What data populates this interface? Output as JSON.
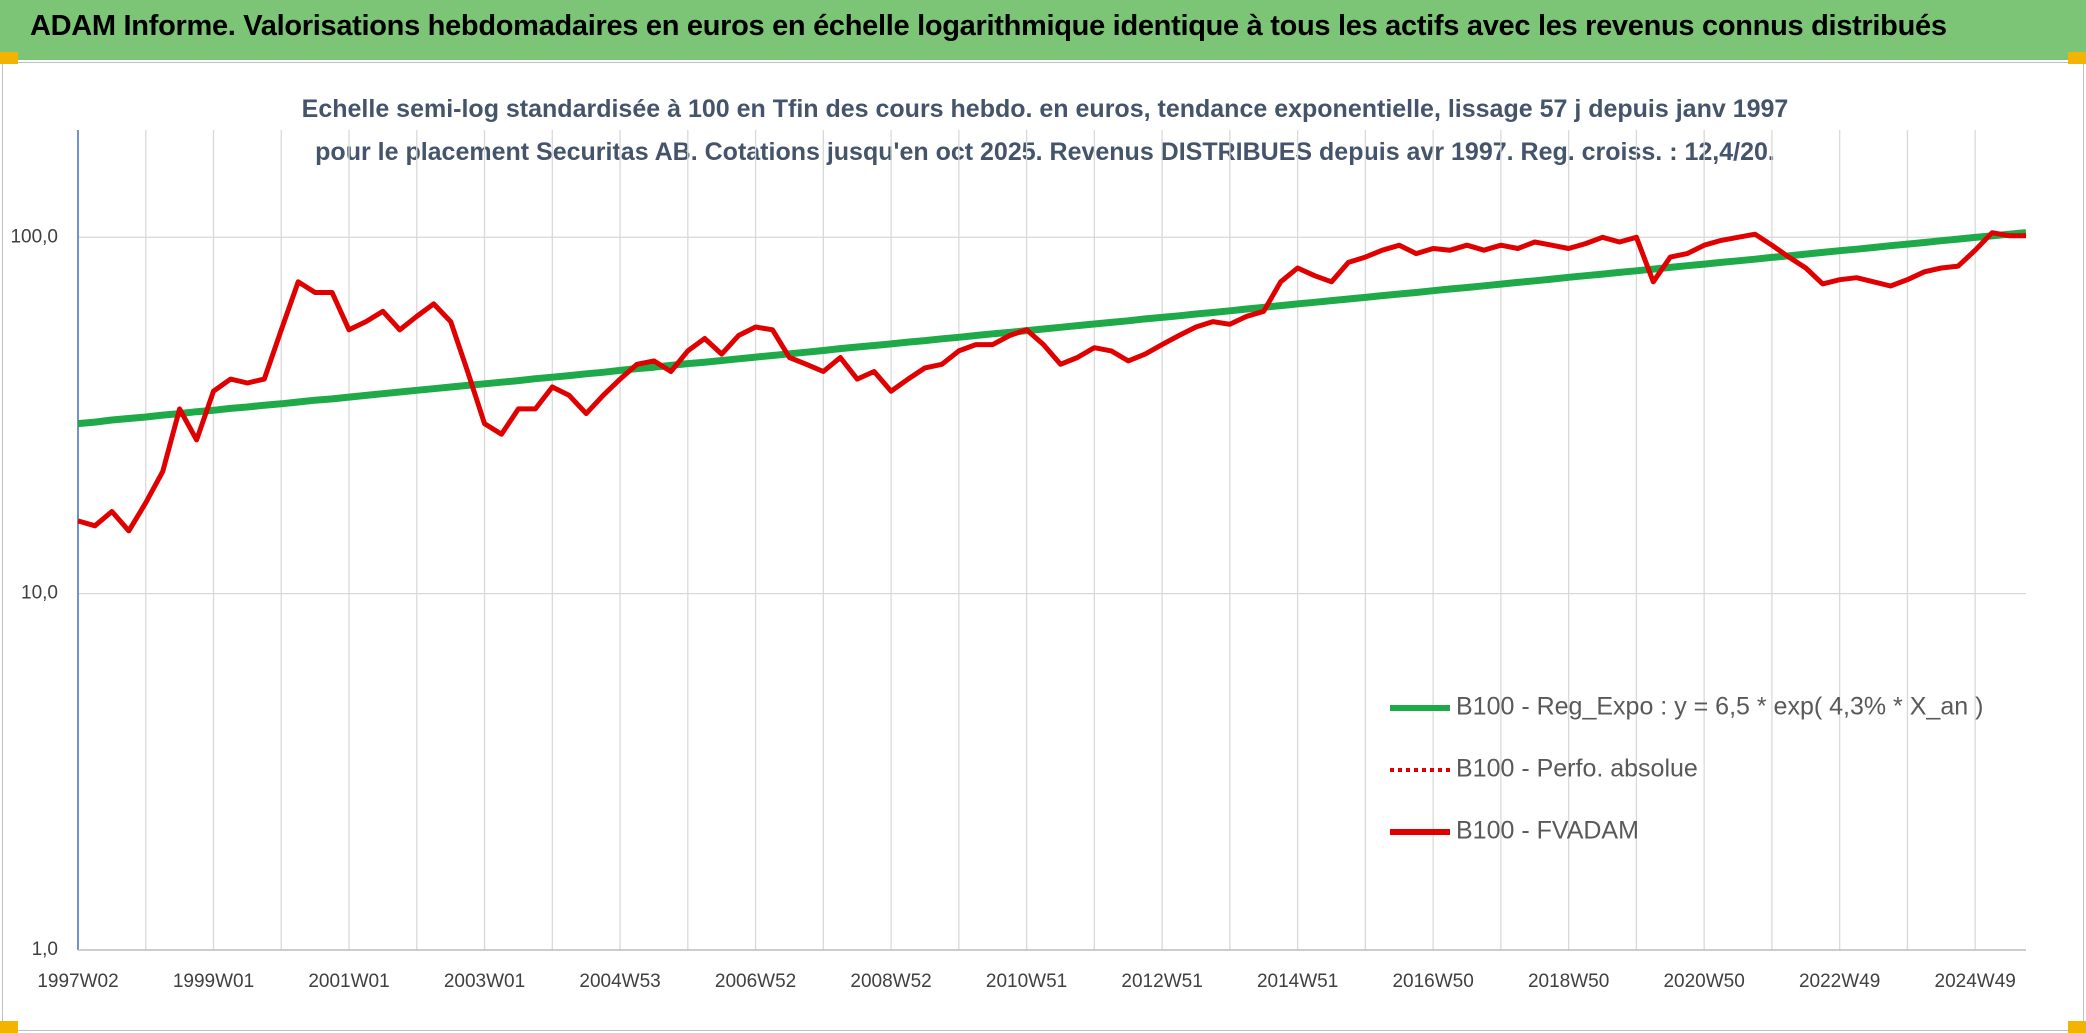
{
  "chart_data": {
    "type": "line",
    "title": "ADAM Informe. Valorisations hebdomadaires en euros en échelle logarithmique identique à tous les actifs avec les revenus connus distribués",
    "subtitle": "Echelle semi-log standardisée à 100 en Tfin des cours hebdo. en euros, tendance exponentielle, lissage 57 j depuis janv 1997 pour le placement Securitas AB. Cotations jusqu'en oct 2025. Revenus DISTRIBUES depuis avr 1997. Reg. croiss. : 12,4/20.",
    "categories": [
      "1997W02",
      null,
      null,
      null,
      null,
      null,
      null,
      null,
      "1999W01",
      null,
      null,
      null,
      null,
      null,
      null,
      null,
      "2001W01",
      null,
      null,
      null,
      null,
      null,
      null,
      null,
      "2003W01",
      null,
      null,
      null,
      null,
      null,
      null,
      null,
      "2004W53",
      null,
      null,
      null,
      null,
      null,
      null,
      null,
      "2006W52",
      null,
      null,
      null,
      null,
      null,
      null,
      null,
      "2008W52",
      null,
      null,
      null,
      null,
      null,
      null,
      null,
      "2010W51",
      null,
      null,
      null,
      null,
      null,
      null,
      null,
      "2012W51",
      null,
      null,
      null,
      null,
      null,
      null,
      null,
      "2014W51",
      null,
      null,
      null,
      null,
      null,
      null,
      null,
      "2016W50",
      null,
      null,
      null,
      null,
      null,
      null,
      null,
      "2018W50",
      null,
      null,
      null,
      null,
      null,
      null,
      null,
      "2020W50",
      null,
      null,
      null,
      null,
      null,
      null,
      null,
      "2022W49",
      null,
      null,
      null,
      null,
      null,
      null,
      null,
      "2024W49",
      null,
      null,
      null
    ],
    "series": [
      {
        "name": "B100 - Reg_Expo : y = 6,5 * exp( 4,3% *  X_an )",
        "color": "#1faa4a",
        "dash": false,
        "values": [
          30.0,
          30.3,
          30.7,
          31.0,
          31.3,
          31.7,
          32.0,
          32.4,
          32.7,
          33.1,
          33.4,
          33.8,
          34.1,
          34.5,
          34.9,
          35.2,
          35.6,
          36.0,
          36.4,
          36.8,
          37.2,
          37.6,
          38.0,
          38.4,
          38.8,
          39.2,
          39.6,
          40.1,
          40.5,
          40.9,
          41.4,
          41.8,
          42.3,
          42.8,
          43.2,
          43.7,
          44.2,
          44.6,
          45.1,
          45.6,
          46.1,
          46.6,
          47.1,
          47.6,
          48.1,
          48.7,
          49.2,
          49.7,
          50.2,
          50.8,
          51.3,
          51.9,
          52.4,
          53.0,
          53.6,
          54.1,
          54.7,
          55.3,
          55.9,
          56.5,
          57.1,
          57.7,
          58.3,
          59.0,
          59.6,
          60.2,
          60.9,
          61.5,
          62.2,
          62.9,
          63.6,
          64.3,
          65.0,
          65.7,
          66.4,
          67.1,
          67.8,
          68.6,
          69.3,
          70.0,
          70.8,
          71.6,
          72.3,
          73.1,
          73.9,
          74.7,
          75.5,
          76.3,
          77.2,
          78.0,
          78.8,
          79.7,
          80.5,
          81.4,
          82.3,
          83.2,
          84.1,
          85.0,
          85.9,
          86.8,
          87.8,
          88.7,
          89.7,
          90.7,
          91.7,
          92.6,
          93.6,
          94.7,
          95.7,
          96.7,
          97.8,
          98.8,
          99.9,
          100.9,
          102.0,
          103.1
        ]
      },
      {
        "name": "B100 - Perfo. absolue",
        "color": "#e00000",
        "dash": true,
        "values": [
          16,
          15.5,
          17,
          15,
          18,
          22,
          33,
          27,
          37,
          40,
          39,
          40,
          55,
          75,
          70,
          70,
          55,
          58,
          62,
          55,
          60,
          65,
          58,
          42,
          30,
          28,
          33,
          33,
          38,
          36,
          32,
          36,
          40,
          44,
          45,
          42,
          48,
          52,
          47,
          53,
          56,
          55,
          46,
          44,
          42,
          46,
          40,
          42,
          37,
          40,
          43,
          44,
          48,
          50,
          50,
          53,
          55,
          50,
          44,
          46,
          49,
          48,
          45,
          47,
          50,
          53,
          56,
          58,
          57,
          60,
          62,
          75,
          82,
          78,
          75,
          85,
          88,
          92,
          95,
          90,
          93,
          92,
          95,
          92,
          95,
          93,
          97,
          95,
          93,
          96,
          100,
          97,
          100,
          75,
          88,
          90,
          95,
          98,
          100,
          102,
          95,
          88,
          82,
          74,
          76,
          77,
          75,
          73,
          76,
          80,
          82,
          83,
          92,
          103,
          101,
          101
        ]
      },
      {
        "name": "B100 - FVADAM",
        "color": "#e00000",
        "dash": false,
        "values": [
          16,
          15.5,
          17,
          15,
          18,
          22,
          33,
          27,
          37,
          40,
          39,
          40,
          55,
          75,
          70,
          70,
          55,
          58,
          62,
          55,
          60,
          65,
          58,
          42,
          30,
          28,
          33,
          33,
          38,
          36,
          32,
          36,
          40,
          44,
          45,
          42,
          48,
          52,
          47,
          53,
          56,
          55,
          46,
          44,
          42,
          46,
          40,
          42,
          37,
          40,
          43,
          44,
          48,
          50,
          50,
          53,
          55,
          50,
          44,
          46,
          49,
          48,
          45,
          47,
          50,
          53,
          56,
          58,
          57,
          60,
          62,
          75,
          82,
          78,
          75,
          85,
          88,
          92,
          95,
          90,
          93,
          92,
          95,
          92,
          95,
          93,
          97,
          95,
          93,
          96,
          100,
          97,
          100,
          75,
          88,
          90,
          95,
          98,
          100,
          102,
          95,
          88,
          82,
          74,
          76,
          77,
          75,
          73,
          76,
          80,
          82,
          83,
          92,
          103,
          101,
          101
        ]
      }
    ],
    "ylim": [
      1,
      200
    ],
    "log_scale": true,
    "yticks": [
      {
        "value": 1,
        "label": "1,0"
      },
      {
        "value": 10,
        "label": "10,0"
      },
      {
        "value": 100,
        "label": "100,0"
      }
    ],
    "grid": true,
    "legend_position": "lower right"
  }
}
